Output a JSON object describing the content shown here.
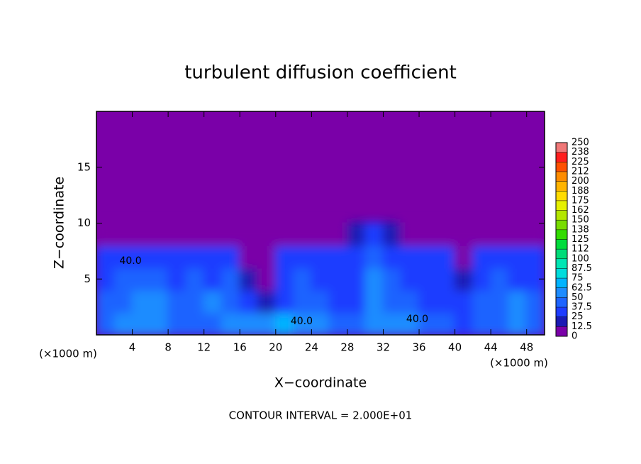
{
  "chart_data": {
    "type": "contour",
    "title": "turbulent diffusion coefficient",
    "x_label": "X−coordinate",
    "y_label": "Z−coordinate",
    "x_unit_labels": [
      "(×1000 m)",
      "(×1000 m)"
    ],
    "footer": "CONTOUR INTERVAL = 2.000E+01",
    "xlim": [
      0,
      50
    ],
    "ylim": [
      0,
      20
    ],
    "xticks": [
      4,
      8,
      12,
      16,
      20,
      24,
      28,
      32,
      36,
      40,
      44,
      48
    ],
    "yticks": [
      5,
      10,
      15
    ],
    "x": [
      1,
      3,
      5,
      7,
      9,
      11,
      13,
      15,
      17,
      19,
      21,
      23,
      25,
      27,
      29,
      31,
      33,
      35,
      37,
      39,
      41,
      43,
      45,
      47,
      49
    ],
    "y": [
      1,
      3,
      5,
      7,
      9
    ],
    "z": [
      [
        45,
        50,
        55,
        50,
        45,
        40,
        45,
        50,
        55,
        60,
        65,
        55,
        50,
        45,
        45,
        55,
        60,
        50,
        40,
        40,
        35,
        45,
        40,
        50,
        45
      ],
      [
        40,
        45,
        50,
        55,
        40,
        45,
        50,
        45,
        35,
        20,
        30,
        45,
        40,
        35,
        35,
        60,
        45,
        40,
        35,
        35,
        30,
        45,
        40,
        50,
        40
      ],
      [
        35,
        40,
        45,
        40,
        35,
        40,
        35,
        40,
        20,
        5,
        30,
        40,
        35,
        35,
        35,
        50,
        40,
        35,
        35,
        35,
        20,
        35,
        40,
        35,
        35
      ],
      [
        30,
        35,
        30,
        35,
        30,
        25,
        35,
        30,
        5,
        5,
        25,
        30,
        30,
        30,
        25,
        40,
        30,
        30,
        25,
        25,
        5,
        30,
        30,
        25,
        30
      ],
      [
        5,
        5,
        5,
        5,
        5,
        5,
        5,
        5,
        5,
        5,
        5,
        5,
        5,
        5,
        15,
        25,
        15,
        5,
        5,
        5,
        5,
        5,
        5,
        5,
        5
      ]
    ],
    "contour_labels": [
      {
        "label": "40.0",
        "value": 40,
        "x": 3.8,
        "y": 6.6
      },
      {
        "label": "40.0",
        "value": 40,
        "x": 22.9,
        "y": 1.2
      },
      {
        "label": "40.0",
        "value": 40,
        "x": 35.8,
        "y": 1.4
      }
    ],
    "colorbar_ticks": [
      0,
      12.5,
      25,
      37.5,
      50,
      62.5,
      75,
      87.5,
      100,
      {
        "value": 112.5,
        "label": "112"
      },
      125,
      {
        "value": 137.5,
        "label": "138"
      },
      150,
      {
        "value": 162.5,
        "label": "162"
      },
      175,
      {
        "value": 187.5,
        "label": "188"
      },
      200,
      {
        "value": 212.5,
        "label": "212"
      },
      225,
      {
        "value": 237.5,
        "label": "238"
      },
      250
    ],
    "colors": [
      "#7a00a8",
      "#1a1ab4",
      "#1e3cff",
      "#1e64ff",
      "#1e8cff",
      "#00b4ff",
      "#00dcdc",
      "#00e6b4",
      "#00dc78",
      "#00dc3c",
      "#32dc00",
      "#78dc00",
      "#b4e600",
      "#e6f000",
      "#ffdc00",
      "#ffb400",
      "#ff8c00",
      "#ff5000",
      "#ff1e1e",
      "#f07878"
    ]
  }
}
